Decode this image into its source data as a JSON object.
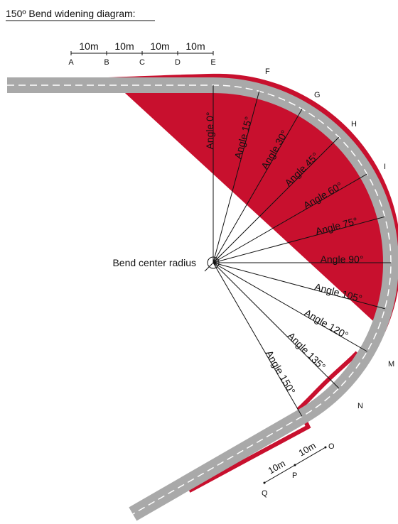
{
  "title": "150º Bend widening diagram:",
  "top_scale": {
    "points": [
      "A",
      "B",
      "C",
      "D",
      "E"
    ],
    "distances": [
      "10m",
      "10m",
      "10m",
      "10m"
    ]
  },
  "bottom_scale": {
    "points": [
      "Q",
      "P",
      "O"
    ],
    "distances": [
      "10m",
      "10m"
    ]
  },
  "arc_points": [
    "F",
    "G",
    "H",
    "I",
    "M",
    "N"
  ],
  "angles": [
    "Angle 0°",
    "Angle 15°",
    "Angle 30°",
    "Angle 45°",
    "Angle 60°",
    "Angle 75°",
    "Angle 90°",
    "Angle 105°",
    "Angle 120°",
    "Angle 135°",
    "Angle 150°"
  ],
  "center_label": "Bend center radius"
}
